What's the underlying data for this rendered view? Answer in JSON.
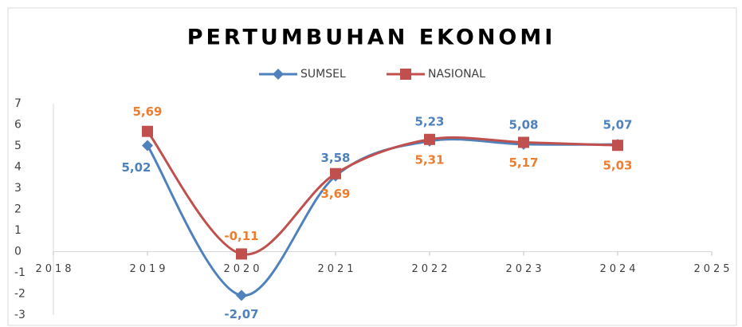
{
  "chart_data": {
    "type": "line",
    "title": "PERTUMBUHAN EKONOMI",
    "x": [
      2019,
      2020,
      2021,
      2022,
      2023,
      2024
    ],
    "series": [
      {
        "name": "SUMSEL",
        "color": "#4f81bd",
        "label_color": "#4f81bd",
        "marker": "diamond",
        "values": [
          5.02,
          -2.07,
          3.58,
          5.23,
          5.08,
          5.07
        ],
        "value_labels": [
          "5,02",
          "-2,07",
          "3,58",
          "5,23",
          "5,08",
          "5,07"
        ]
      },
      {
        "name": "NASIONAL",
        "color": "#c0504d",
        "label_color": "#ed7d31",
        "marker": "square",
        "values": [
          5.69,
          -0.11,
          3.69,
          5.31,
          5.17,
          5.03
        ],
        "value_labels": [
          "5,69",
          "-0,11",
          "3,69",
          "5,31",
          "5,17",
          "5,03"
        ]
      }
    ],
    "xlim": [
      2018,
      2025
    ],
    "xticks": [
      2018,
      2019,
      2020,
      2021,
      2022,
      2023,
      2024,
      2025
    ],
    "ylim": [
      -3,
      7
    ],
    "yticks": [
      -3,
      -2,
      -1,
      0,
      1,
      2,
      3,
      4,
      5,
      6,
      7
    ],
    "smooth": true,
    "legend": "top"
  }
}
